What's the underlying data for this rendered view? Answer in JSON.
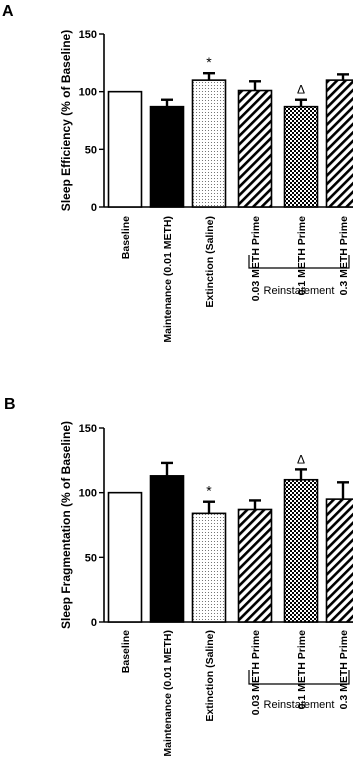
{
  "panel_a_letter": "A",
  "panel_b_letter": "B",
  "chart_data": [
    {
      "type": "bar",
      "panel": "A",
      "ylabel": "Sleep  Efficiency (% of Baseline)",
      "ylim": [
        0,
        150
      ],
      "yticks": [
        0,
        50,
        100,
        150
      ],
      "categories": [
        "Baseline",
        "Maintenance (0.01 METH)",
        "Extinction (Saline)",
        "0.03 METH Prime",
        "0.1 METH Prime",
        "0.3 METH Prime"
      ],
      "values": [
        100,
        87,
        110,
        101,
        87,
        110
      ],
      "errors": [
        0,
        6,
        6,
        8,
        6,
        5
      ],
      "fills": [
        "white",
        "black",
        "dotted",
        "hatched",
        "checkered",
        "hatched"
      ],
      "annotations": [
        "",
        "",
        "*",
        "",
        "Δ",
        ""
      ],
      "group_label": "Reinstatement",
      "group_span": [
        3,
        5
      ]
    },
    {
      "type": "bar",
      "panel": "B",
      "ylabel": "Sleep  Fragmentation (% of Baseline)",
      "ylim": [
        0,
        150
      ],
      "yticks": [
        0,
        50,
        100,
        150
      ],
      "categories": [
        "Baseline",
        "Maintenance (0.01 METH)",
        "Extinction (Saline)",
        "0.03 METH Prime",
        "0.1 METH Prime",
        "0.3 METH Prime"
      ],
      "values": [
        100,
        113,
        84,
        87,
        110,
        95
      ],
      "errors": [
        0,
        10,
        9,
        7,
        8,
        13
      ],
      "fills": [
        "white",
        "black",
        "dotted",
        "hatched",
        "checkered",
        "hatched"
      ],
      "annotations": [
        "",
        "",
        "*",
        "",
        "Δ",
        ""
      ],
      "group_label": "Reinstatement",
      "group_span": [
        3,
        5
      ]
    }
  ],
  "colors": {
    "axis": "#000000",
    "bar_stroke": "#000000",
    "black_fill": "#000000",
    "white_fill": "#ffffff"
  }
}
